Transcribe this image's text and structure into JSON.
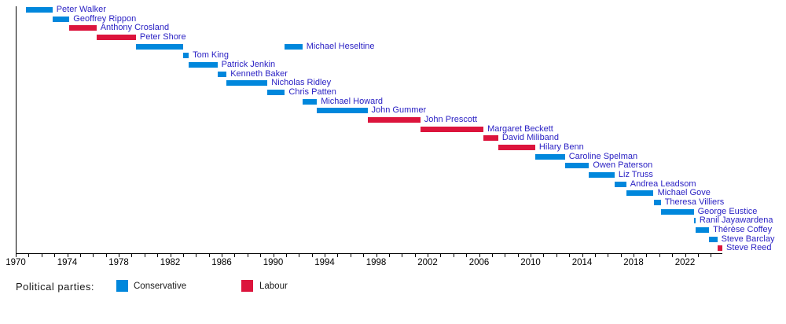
{
  "chart_data": {
    "type": "bar",
    "variant": "horizontal-timeline-gantt",
    "title": "",
    "x_axis": {
      "min": 1970,
      "max": 2024.9,
      "minor_tick_interval": 1,
      "major_tick_interval": 4,
      "last_minor_tick_year": 2024,
      "tick_labels": [
        "1970",
        "1974",
        "1978",
        "1982",
        "1986",
        "1990",
        "1994",
        "1998",
        "2002",
        "2006",
        "2010",
        "2014",
        "2018",
        "2022"
      ]
    },
    "party_colors": {
      "Conservative": "#0087DC",
      "Labour": "#DC143C"
    },
    "series": [
      {
        "name": "Peter Walker",
        "party": "Conservative",
        "terms": [
          [
            1970.79,
            1972.85
          ]
        ]
      },
      {
        "name": "Geoffrey Rippon",
        "party": "Conservative",
        "terms": [
          [
            1972.85,
            1974.17
          ]
        ]
      },
      {
        "name": "Anthony Crosland",
        "party": "Labour",
        "terms": [
          [
            1974.17,
            1976.27
          ]
        ]
      },
      {
        "name": "Peter Shore",
        "party": "Labour",
        "terms": [
          [
            1976.27,
            1979.34
          ]
        ]
      },
      {
        "name": "Michael Heseltine",
        "party": "Conservative",
        "terms": [
          [
            1979.34,
            1983.02
          ],
          [
            1990.91,
            1992.27
          ]
        ]
      },
      {
        "name": "Tom King",
        "party": "Conservative",
        "terms": [
          [
            1983.02,
            1983.44
          ]
        ]
      },
      {
        "name": "Patrick Jenkin",
        "party": "Conservative",
        "terms": [
          [
            1983.44,
            1985.67
          ]
        ]
      },
      {
        "name": "Kenneth Baker",
        "party": "Conservative",
        "terms": [
          [
            1985.67,
            1986.38
          ]
        ]
      },
      {
        "name": "Nicholas Ridley",
        "party": "Conservative",
        "terms": [
          [
            1986.38,
            1989.56
          ]
        ]
      },
      {
        "name": "Chris Patten",
        "party": "Conservative",
        "terms": [
          [
            1989.56,
            1990.91
          ]
        ]
      },
      {
        "name": "Michael Howard",
        "party": "Conservative",
        "terms": [
          [
            1992.27,
            1993.4
          ]
        ]
      },
      {
        "name": "John Gummer",
        "party": "Conservative",
        "terms": [
          [
            1993.4,
            1997.33
          ]
        ]
      },
      {
        "name": "John Prescott",
        "party": "Labour",
        "terms": [
          [
            1997.33,
            2001.44
          ]
        ]
      },
      {
        "name": "Margaret Beckett",
        "party": "Labour",
        "terms": [
          [
            2001.44,
            2006.34
          ]
        ]
      },
      {
        "name": "David Miliband",
        "party": "Labour",
        "terms": [
          [
            2006.34,
            2007.49
          ]
        ]
      },
      {
        "name": "Hilary Benn",
        "party": "Labour",
        "terms": [
          [
            2007.49,
            2010.36
          ]
        ]
      },
      {
        "name": "Caroline Spelman",
        "party": "Conservative",
        "terms": [
          [
            2010.36,
            2012.67
          ]
        ]
      },
      {
        "name": "Owen Paterson",
        "party": "Conservative",
        "terms": [
          [
            2012.67,
            2014.54
          ]
        ]
      },
      {
        "name": "Liz Truss",
        "party": "Conservative",
        "terms": [
          [
            2014.54,
            2016.53
          ]
        ]
      },
      {
        "name": "Andrea Leadsom",
        "party": "Conservative",
        "terms": [
          [
            2016.53,
            2017.44
          ]
        ]
      },
      {
        "name": "Michael Gove",
        "party": "Conservative",
        "terms": [
          [
            2017.44,
            2019.56
          ]
        ]
      },
      {
        "name": "Theresa Villiers",
        "party": "Conservative",
        "terms": [
          [
            2019.56,
            2020.12
          ]
        ]
      },
      {
        "name": "George Eustice",
        "party": "Conservative",
        "terms": [
          [
            2020.12,
            2022.68
          ]
        ]
      },
      {
        "name": "Ranil Jayawardena",
        "party": "Conservative",
        "terms": [
          [
            2022.68,
            2022.82
          ]
        ]
      },
      {
        "name": "Thérèse Coffey",
        "party": "Conservative",
        "terms": [
          [
            2022.82,
            2023.87
          ]
        ]
      },
      {
        "name": "Steve Barclay",
        "party": "Conservative",
        "terms": [
          [
            2023.87,
            2024.51
          ]
        ]
      },
      {
        "name": "Steve Reed",
        "party": "Labour",
        "terms": [
          [
            2024.51,
            2024.9
          ]
        ]
      }
    ]
  },
  "label_color": "#2b22c4",
  "legend": {
    "title": "Political parties:",
    "entries": [
      {
        "label": "Conservative",
        "color": "#0087DC"
      },
      {
        "label": "Labour",
        "color": "#DC143C"
      }
    ]
  }
}
